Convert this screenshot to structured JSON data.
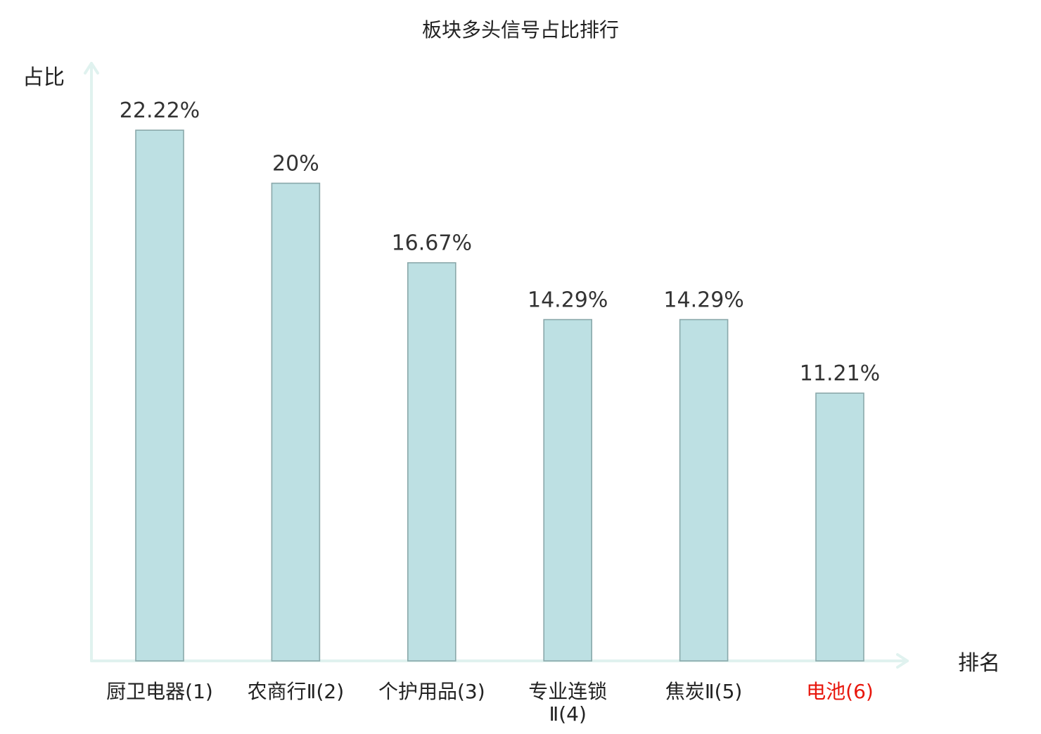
{
  "chart_data": {
    "type": "bar",
    "title": "板块多头信号占比排行",
    "xlabel": "排名",
    "ylabel": "占比",
    "categories": [
      "厨卫电器(1)",
      "农商行Ⅱ(2)",
      "个护用品(3)",
      "专业连锁Ⅱ(4)",
      "焦炭Ⅱ(5)",
      "电池(6)"
    ],
    "category_lines": [
      [
        "厨卫电器(1)"
      ],
      [
        "农商行Ⅱ(2)"
      ],
      [
        "个护用品(3)"
      ],
      [
        "专业连锁",
        "Ⅱ(4)"
      ],
      [
        "焦炭Ⅱ(5)"
      ],
      [
        "电池(6)"
      ]
    ],
    "values": [
      22.22,
      20,
      16.67,
      14.29,
      14.29,
      11.21
    ],
    "value_labels": [
      "22.22%",
      "20%",
      "16.67%",
      "14.29%",
      "14.29%",
      "11.21%"
    ],
    "highlighted_index": 5,
    "ylim": [
      0,
      25
    ],
    "grid": false,
    "legend": "none"
  },
  "colors": {
    "bar_fill": "#bde0e3",
    "bar_stroke": "#8aa8aa",
    "axis": "#e0f2ef",
    "text": "#333333",
    "label_text": "#222222",
    "highlight_text": "#e8160c"
  }
}
